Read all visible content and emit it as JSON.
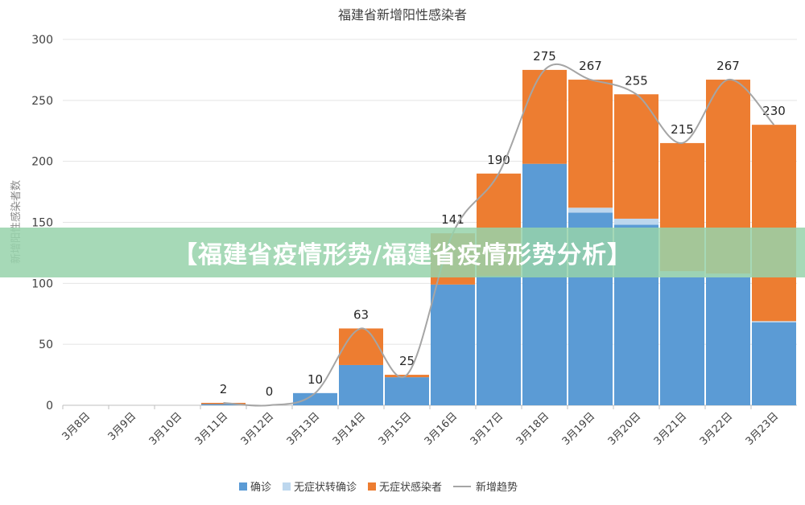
{
  "chart_data": {
    "type": "bar",
    "stacked": true,
    "title": "福建省新增阳性感染者",
    "xlabel": "",
    "ylabel": "新增阳性感染者数",
    "ylim": [
      0,
      300
    ],
    "yticks": [
      0,
      50,
      100,
      150,
      200,
      250,
      300
    ],
    "grid": true,
    "legend_position": "bottom",
    "categories": [
      "3月8日",
      "3月9日",
      "3月10日",
      "3月11日",
      "3月12日",
      "3月13日",
      "3月14日",
      "3月15日",
      "3月16日",
      "3月17日",
      "3月18日",
      "3月19日",
      "3月20日",
      "3月21日",
      "3月22日",
      "3月23日"
    ],
    "series": [
      {
        "name": "确诊",
        "color": "#5b9bd5",
        "values": [
          0,
          0,
          0,
          1,
          0,
          10,
          33,
          23,
          99,
          106,
          198,
          158,
          148,
          105,
          105,
          68
        ]
      },
      {
        "name": "无症状转确诊",
        "color": "#bdd7ee",
        "values": [
          0,
          0,
          0,
          0,
          0,
          0,
          0,
          0,
          0,
          0,
          0,
          4,
          5,
          5,
          3,
          1
        ]
      },
      {
        "name": "无症状感染者",
        "color": "#ed7d31",
        "values": [
          0,
          0,
          0,
          1,
          0,
          0,
          30,
          2,
          42,
          84,
          77,
          105,
          102,
          105,
          159,
          161
        ]
      }
    ],
    "trend": {
      "name": "新增趋势",
      "color": "#a5a5a5",
      "start_index": 3,
      "values": [
        2,
        0,
        10,
        63,
        25,
        141,
        190,
        275,
        267,
        255,
        215,
        267,
        230
      ]
    },
    "data_labels": [
      "",
      "",
      "",
      "2",
      "0",
      "10",
      "63",
      "25",
      "141",
      "190",
      "275",
      "267",
      "255",
      "215",
      "267",
      "230"
    ]
  },
  "banner": {
    "text": "【福建省疫情形势/福建省疫情形势分析】"
  }
}
